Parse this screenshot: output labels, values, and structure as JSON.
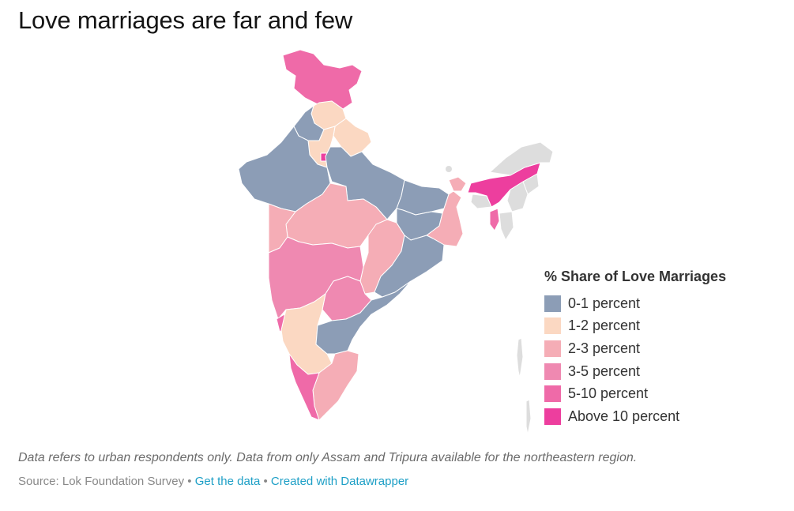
{
  "title": "Love marriages are far and few",
  "legend": {
    "title": "% Share of Love Marriages",
    "items": [
      {
        "label": "0-1 percent",
        "color": "#8c9db6"
      },
      {
        "label": "1-2 percent",
        "color": "#fbd8c2"
      },
      {
        "label": "2-3 percent",
        "color": "#f5adb6"
      },
      {
        "label": "3-5 percent",
        "color": "#ef89b1"
      },
      {
        "label": "5-10 percent",
        "color": "#ef6aa8"
      },
      {
        "label": "Above 10 percent",
        "color": "#ed3e9e"
      }
    ]
  },
  "no_data_color": "#dddddd",
  "notes": "Data refers to urban respondents only. Data from only Assam and Tripura available for the northeastern region.",
  "source": {
    "prefix": "Source: Lok Foundation Survey",
    "separator": "•",
    "get_data": "Get the data",
    "created_with": "Created with Datawrapper"
  },
  "regions": [
    {
      "category": "5-10 percent"
    },
    {
      "category": "1-2 percent"
    },
    {
      "category": "1-2 percent"
    },
    {
      "category": "0-1 percent"
    },
    {
      "category": "1-2 percent"
    },
    {
      "category": "Above 10 percent"
    },
    {
      "category": "0-1 percent"
    },
    {
      "category": "0-1 percent"
    },
    {
      "category": "2-3 percent"
    },
    {
      "category": "2-3 percent"
    },
    {
      "category": "0-1 percent"
    },
    {
      "category": "0-1 percent"
    },
    {
      "category": "2-3 percent"
    },
    {
      "category": "2-3 percent"
    },
    {
      "category": "2-3 percent"
    },
    {
      "category": "3-5 percent"
    },
    {
      "category": "3-5 percent"
    },
    {
      "category": "5-10 percent"
    },
    {
      "category": "1-2 percent"
    },
    {
      "category": "0-1 percent"
    },
    {
      "category": "0-1 percent"
    },
    {
      "category": "2-3 percent"
    },
    {
      "category": "5-10 percent"
    },
    {
      "category": "Above 10 percent"
    },
    {
      "category": "5-10 percent"
    },
    {
      "category": "no data"
    },
    {
      "category": "no data"
    },
    {
      "category": "no data"
    },
    {
      "category": "no data"
    },
    {
      "category": "no data"
    },
    {
      "category": "no data"
    }
  ]
}
